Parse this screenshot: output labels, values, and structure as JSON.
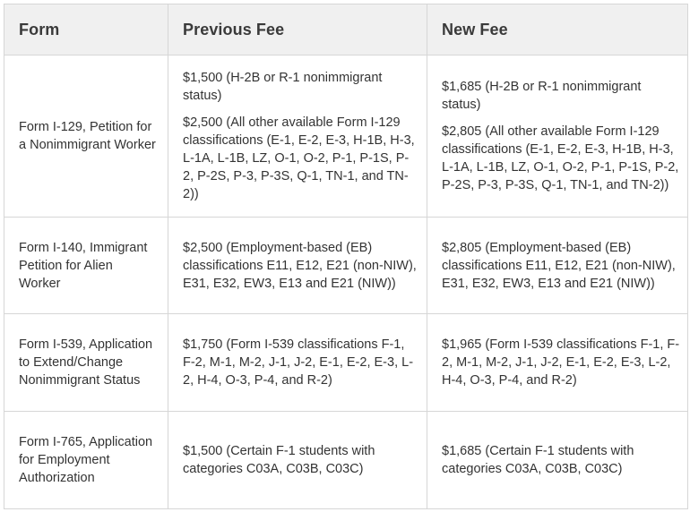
{
  "table": {
    "headers": [
      "Form",
      "Previous Fee",
      "New Fee"
    ],
    "rows": [
      {
        "form": "Form I-129, Petition for a Nonimmigrant Worker",
        "previous_fee": [
          "$1,500 (H-2B or R-1 nonimmigrant status)",
          "$2,500 (All other available Form I-129 classifications (E-1, E-2, E-3, H-1B, H-3, L-1A, L-1B, LZ, O-1, O-2, P-1, P-1S, P-2, P-2S, P-3, P-3S, Q-1, TN-1, and TN-2))"
        ],
        "new_fee": [
          "$1,685 (H-2B or R-1 nonimmigrant status)",
          "$2,805 (All other available Form I-129 classifications (E-1, E-2, E-3, H-1B, H-3, L-1A, L-1B, LZ, O-1, O-2, P-1, P-1S, P-2, P-2S, P-3, P-3S, Q-1, TN-1, and TN-2))"
        ]
      },
      {
        "form": "Form I-140, Immigrant Petition for Alien Worker",
        "previous_fee": [
          "$2,500 (Employment-based (EB) classifications E11, E12, E21 (non-NIW), E31, E32, EW3, E13 and E21 (NIW))"
        ],
        "new_fee": [
          "$2,805 (Employment-based (EB) classifications E11, E12, E21 (non-NIW), E31, E32, EW3, E13 and E21 (NIW))"
        ]
      },
      {
        "form": "Form I-539, Application to Extend/Change Nonimmigrant Status",
        "previous_fee": [
          "$1,750 (Form I-539 classifications F-1, F-2, M-1, M-2, J-1, J-2, E-1, E-2, E-3, L-2, H-4, O-3, P-4, and R-2)"
        ],
        "new_fee": [
          "$1,965 (Form I-539 classifications F-1, F-2, M-1, M-2, J-1, J-2, E-1, E-2, E-3, L-2, H-4, O-3, P-4, and R-2)"
        ]
      },
      {
        "form": "Form I-765, Application for Employment Authorization",
        "previous_fee": [
          "$1,500 (Certain F-1 students with categories C03A, C03B, C03C)"
        ],
        "new_fee": [
          "$1,685 (Certain F-1 students  with categories C03A, C03B, C03C)"
        ]
      }
    ]
  }
}
